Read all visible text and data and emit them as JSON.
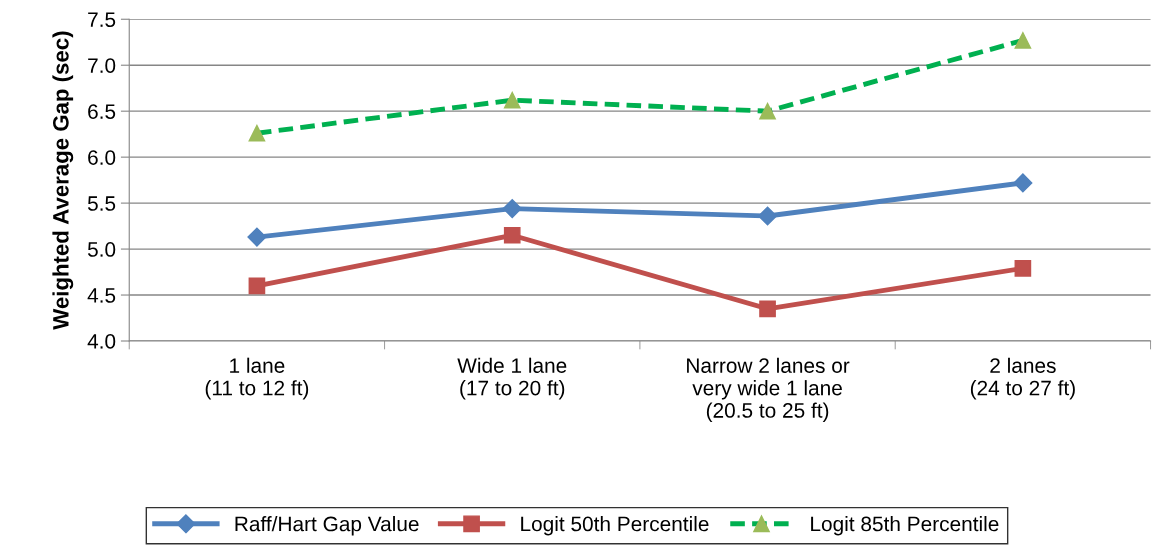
{
  "chart_data": {
    "type": "line",
    "ylabel": "Weighted Average Gap (sec)",
    "categories": [
      "1 lane\n(11 to 12 ft)",
      "Wide 1 lane\n(17 to 20 ft)",
      "Narrow 2 lanes or\nvery wide 1 lane\n(20.5 to 25 ft)",
      "2 lanes\n(24 to 27 ft)"
    ],
    "series": [
      {
        "name": "Raff/Hart Gap Value",
        "color": "#4f81bd",
        "values": [
          5.13,
          5.44,
          5.36,
          5.72
        ],
        "marker": "diamond",
        "line_style": "solid"
      },
      {
        "name": "Logit 50th Percentile",
        "color": "#c0504d",
        "values": [
          4.6,
          5.15,
          4.35,
          4.79
        ],
        "marker": "square",
        "line_style": "solid"
      },
      {
        "name": "Logit 85th Percentile",
        "color": "#00b050",
        "values": [
          6.26,
          6.62,
          6.5,
          7.27
        ],
        "marker": "triangle",
        "line_style": "dashed"
      }
    ],
    "ylim": [
      4.0,
      7.5
    ],
    "yticks": [
      {
        "value": 4.0,
        "label": "4.0"
      },
      {
        "value": 4.5,
        "label": "4.5"
      },
      {
        "value": 5.0,
        "label": "5.0"
      },
      {
        "value": 5.5,
        "label": "5.5"
      },
      {
        "value": 6.0,
        "label": "6.0"
      },
      {
        "value": 6.5,
        "label": "6.5"
      },
      {
        "value": 7.0,
        "label": "7.0"
      },
      {
        "value": 7.5,
        "label": "7.5"
      }
    ],
    "grid": "y",
    "legend": "bottom"
  }
}
